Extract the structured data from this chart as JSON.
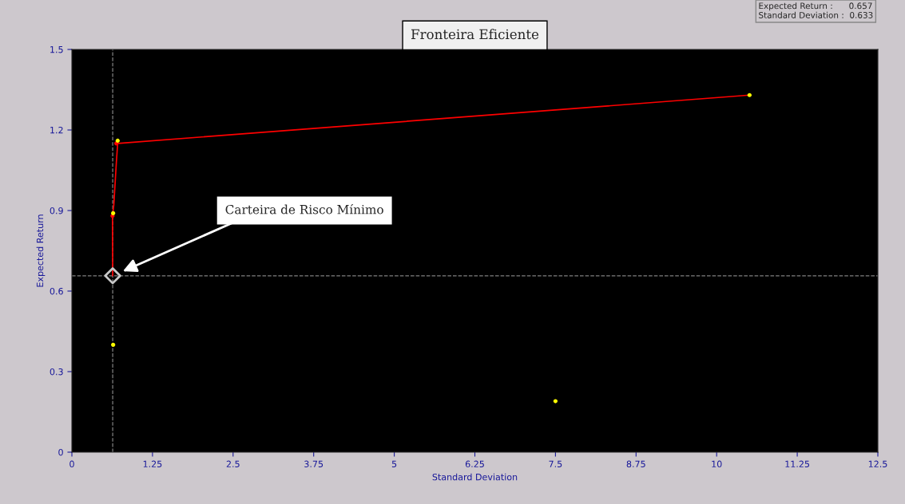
{
  "chart_data": {
    "type": "scatter",
    "title": "Fronteira Eficiente",
    "xlabel": "Standard Deviation",
    "ylabel": "Expected Return",
    "xlim": [
      0,
      12.5
    ],
    "xticks": [
      0,
      1.25,
      2.5,
      3.75,
      5,
      6.25,
      7.5,
      8.75,
      10,
      11.25,
      12.5
    ],
    "ylim": [
      0,
      1.5
    ],
    "yticks": [
      0,
      0.3,
      0.6,
      0.9,
      1.2,
      1.5
    ],
    "grid": false,
    "legend": false,
    "series": [
      {
        "type": "line",
        "color": "#ff0000",
        "marker": "none",
        "line_style": "solid",
        "x": [
          0.633,
          0.63,
          0.65,
          0.68,
          0.69,
          0.71,
          10.51
        ],
        "values": [
          0.657,
          0.88,
          0.92,
          1.04,
          1.08,
          1.15,
          1.33
        ]
      },
      {
        "color": "#ff0000",
        "marker": "circle",
        "x": [
          0.63,
          0.69
        ],
        "values": [
          0.88,
          1.15
        ]
      },
      {
        "color": "#ffff00",
        "marker": "circle",
        "x": [
          0.71,
          0.64,
          0.64,
          7.5,
          10.51
        ],
        "values": [
          1.16,
          0.89,
          0.4,
          0.19,
          1.33
        ]
      },
      {
        "color": "#c8c8c8",
        "marker": "diamond",
        "x": [
          0.633
        ],
        "values": [
          0.657
        ]
      }
    ],
    "ref_lines": [
      {
        "axis": "x",
        "value": 0.633,
        "color": "#808080",
        "line_style": "dashed"
      },
      {
        "axis": "y",
        "value": 0.657,
        "color": "#808080",
        "line_style": "dashed"
      }
    ],
    "annotations": [
      "Carteira de Risco Mínimo",
      "Expected Return :      0.657",
      "Standard Deviation :  0.633"
    ]
  }
}
